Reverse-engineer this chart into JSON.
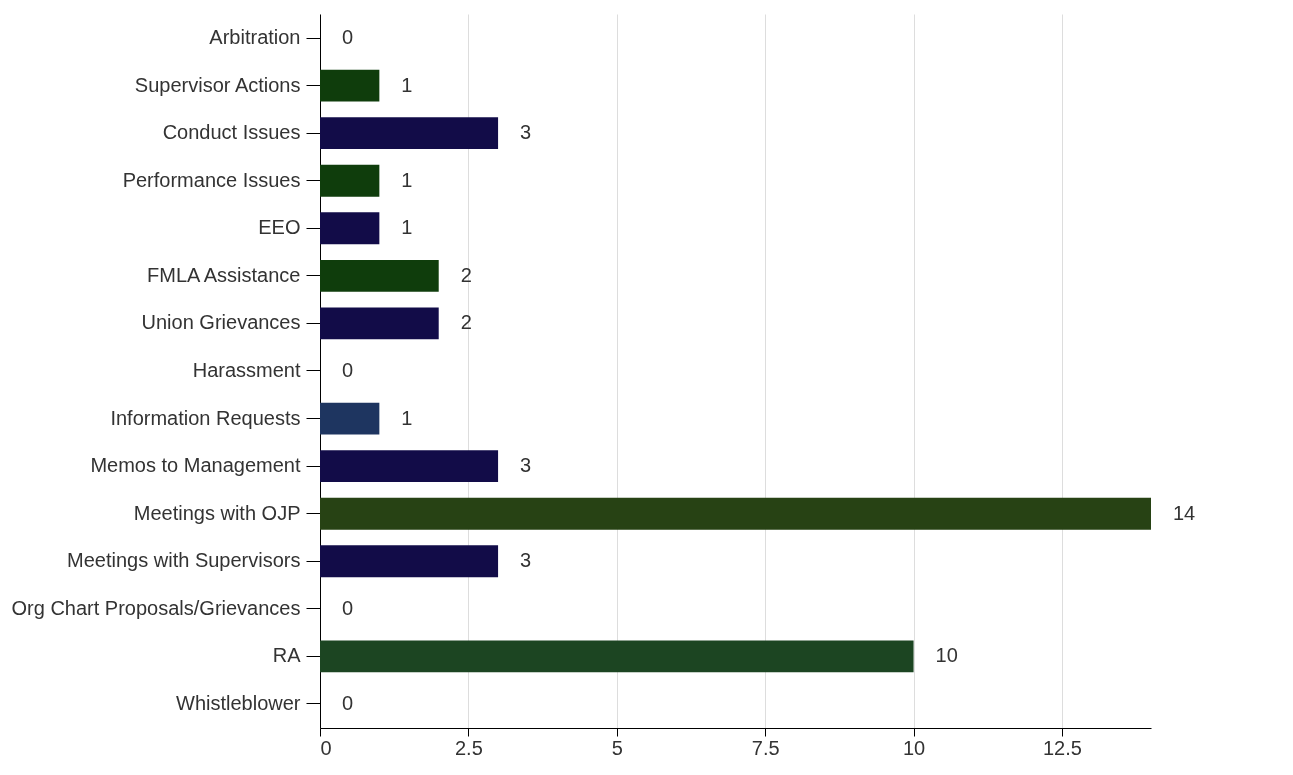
{
  "chart_data": {
    "type": "bar",
    "orientation": "horizontal",
    "categories": [
      "Arbitration",
      "Supervisor Actions",
      "Conduct Issues",
      "Performance Issues",
      "EEO",
      "FMLA Assistance",
      "Union Grievances",
      "Harassment",
      "Information Requests",
      "Memos to Management",
      "Meetings with OJP",
      "Meetings with Supervisors",
      "Org Chart Proposals/Grievances",
      "RA",
      "Whistleblower"
    ],
    "values": [
      0,
      1,
      3,
      1,
      1,
      2,
      2,
      0,
      1,
      3,
      14,
      3,
      0,
      10,
      0
    ],
    "colors": [
      null,
      "#0f3d0c",
      "#120c48",
      "#0f3d0c",
      "#120c48",
      "#0f3d0c",
      "#120c48",
      null,
      "#1e3560",
      "#120c48",
      "#274214",
      "#120c48",
      null,
      "#1c4522",
      null
    ],
    "xlim": [
      0,
      14
    ],
    "xticks": [
      0,
      2.5,
      5,
      7.5,
      10,
      12.5
    ],
    "grid": "x",
    "data_labels": true
  }
}
